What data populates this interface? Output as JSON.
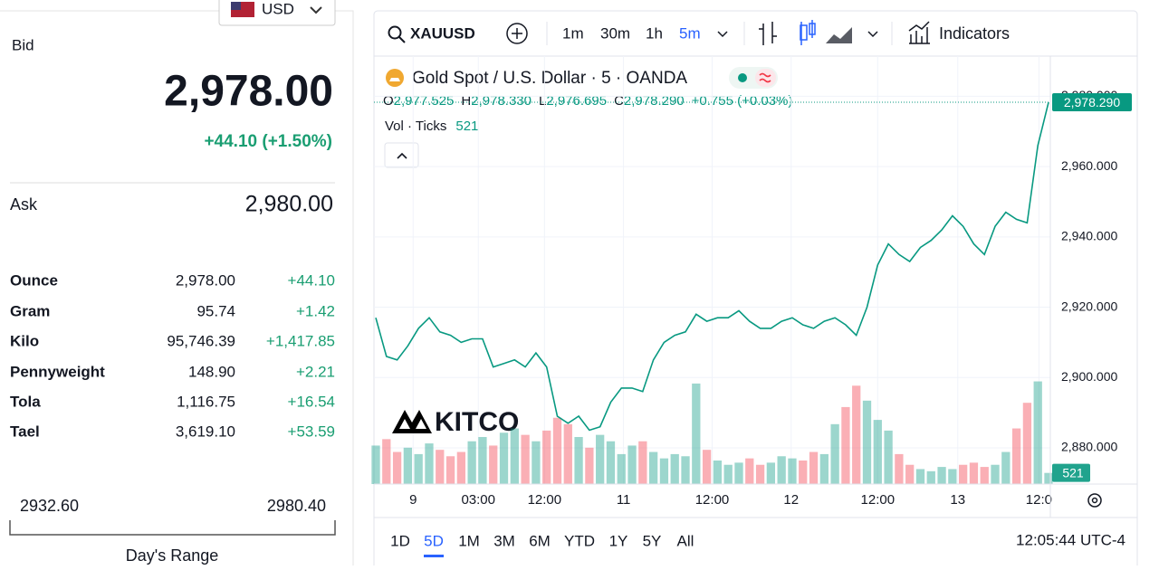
{
  "left": {
    "currency": "USD",
    "bid_label": "Bid",
    "bid": "2,978.00",
    "bid_change": "+44.10 (+1.50%)",
    "ask_label": "Ask",
    "ask": "2,980.00",
    "units": [
      {
        "name": "Ounce",
        "price": "2,978.00",
        "change": "+44.10"
      },
      {
        "name": "Gram",
        "price": "95.74",
        "change": "+1.42"
      },
      {
        "name": "Kilo",
        "price": "95,746.39",
        "change": "+1,417.85"
      },
      {
        "name": "Pennyweight",
        "price": "148.90",
        "change": "+2.21"
      },
      {
        "name": "Tola",
        "price": "1,116.75",
        "change": "+16.54"
      },
      {
        "name": "Tael",
        "price": "3,619.10",
        "change": "+53.59"
      }
    ],
    "range_low": "2932.60",
    "range_high": "2980.40",
    "range_label": "Day's Range"
  },
  "toolbar": {
    "symbol": "XAUUSD",
    "intervals": [
      "1m",
      "30m",
      "1h",
      "5m"
    ],
    "active_interval": "5m",
    "indicators": "Indicators"
  },
  "chart_data": {
    "type": "line",
    "title": "Gold Spot / U.S. Dollar · 5 · OANDA",
    "ohlc": [
      {
        "key": "O",
        "value": "2,977.525"
      },
      {
        "key": "H",
        "value": "2,978.330"
      },
      {
        "key": "L",
        "value": "2,976.695"
      },
      {
        "key": "C",
        "value": "2,978.290"
      }
    ],
    "change": "+0.755 (+0.03%)",
    "volume_label": "Vol · Ticks",
    "watermark": "KITCO",
    "color": "#089981",
    "down_color": "#f23645",
    "values": [
      2917,
      2906,
      2905,
      2909,
      2914,
      2917,
      2913,
      2912,
      2910,
      2911,
      2911,
      2903,
      2904,
      2905,
      2903,
      2907,
      2903,
      2889,
      2887,
      2889,
      2885,
      2886,
      2893,
      2897,
      2897,
      2896,
      2905,
      2910,
      2912,
      2913,
      2918,
      2916,
      2917,
      2917,
      2919,
      2916,
      2914,
      2914,
      2916,
      2917,
      2915,
      2914,
      2916,
      2917,
      2915,
      2912,
      2920,
      2932,
      2938,
      2935,
      2933,
      2937,
      2939,
      2942,
      2946,
      2943,
      2938,
      2935,
      2943,
      2947,
      2945,
      2944,
      2966,
      2978.29
    ],
    "last_value_label": "2,978.290",
    "volume": {
      "values": [
        1800,
        2100,
        1500,
        1700,
        1400,
        1900,
        1600,
        1300,
        1500,
        2000,
        2200,
        1800,
        2400,
        2600,
        2300,
        2000,
        2500,
        3100,
        2800,
        2200,
        1700,
        2300,
        2000,
        1400,
        1800,
        2000,
        1500,
        1200,
        1400,
        1300,
        4700,
        1600,
        1100,
        900,
        1000,
        1200,
        900,
        1000,
        1300,
        1200,
        1100,
        1500,
        1400,
        2800,
        3600,
        4600,
        3900,
        3000,
        2500,
        1400,
        900,
        700,
        600,
        800,
        700,
        900,
        1000,
        800,
        900,
        1500,
        2600,
        3800,
        4800,
        521
      ],
      "vlim": [
        0,
        5500
      ]
    },
    "xlim": [
      0,
      63
    ],
    "xticks": [
      {
        "value": 3.5,
        "label": "9"
      },
      {
        "value": 9.6,
        "label": "03:00"
      },
      {
        "value": 15.8,
        "label": "12:00"
      },
      {
        "value": 23.2,
        "label": "11"
      },
      {
        "value": 31.5,
        "label": "12:00"
      },
      {
        "value": 38.9,
        "label": "12"
      },
      {
        "value": 47,
        "label": "12:00"
      },
      {
        "value": 54.5,
        "label": "13"
      },
      {
        "value": 62.1,
        "label": "12:0"
      }
    ],
    "ylim": [
      2869.7,
      2990.4
    ],
    "yticks": [
      {
        "value": 2880,
        "label": "2,880.000"
      },
      {
        "value": 2900,
        "label": "2,900.000"
      },
      {
        "value": 2920,
        "label": "2,920.000"
      },
      {
        "value": 2940,
        "label": "2,940.000"
      },
      {
        "value": 2960,
        "label": "2,960.000"
      },
      {
        "value": 2980,
        "label": "2,980.000"
      }
    ],
    "grid": true
  },
  "ranges": {
    "buttons": [
      "1D",
      "5D",
      "1M",
      "3M",
      "6M",
      "YTD",
      "1Y",
      "5Y",
      "All"
    ],
    "active": "5D",
    "clock": "12:05:44 UTC-4"
  }
}
